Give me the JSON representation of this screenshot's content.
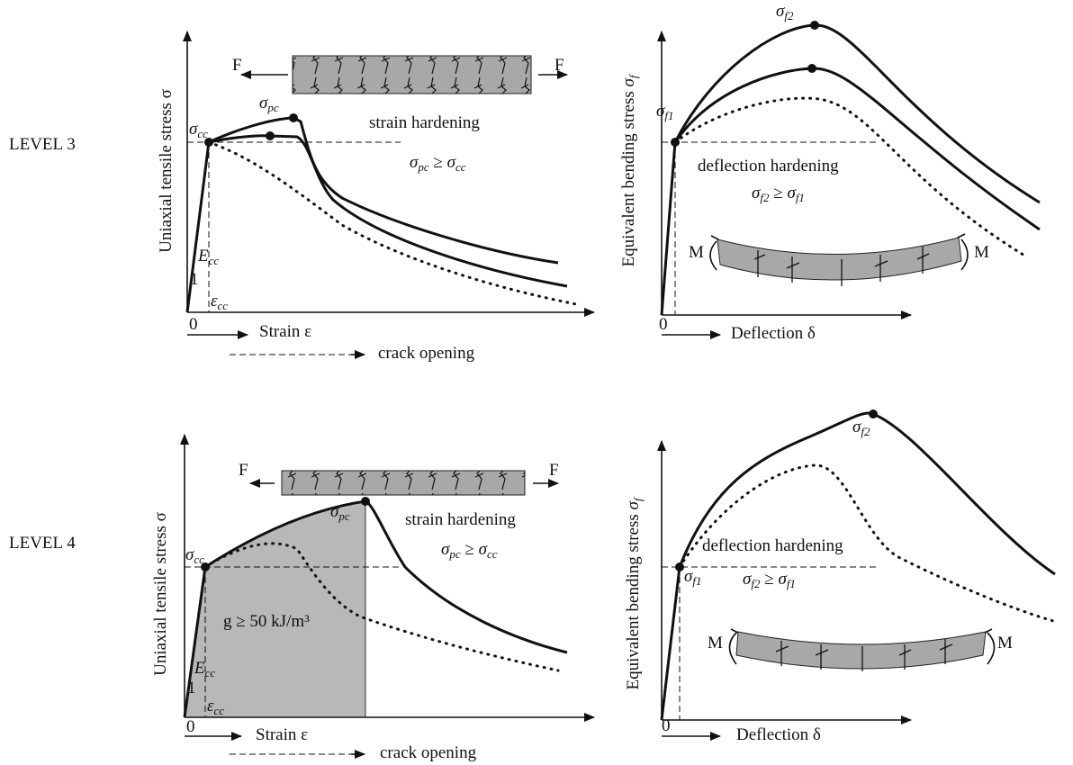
{
  "levels": [
    {
      "label": "LEVEL 3",
      "tensile": {
        "y_axis": "Uniaxial tensile stress σ",
        "x_axis": "Strain ε",
        "x_axis_2": "crack opening",
        "origin": "0",
        "force_left": "F",
        "force_right": "F",
        "first_crack": "σcc",
        "peak": "σpc",
        "modulus": "Ecc",
        "slope": "1",
        "strain_at_crack": "εcc",
        "behavior": "strain hardening",
        "condition": "σpc ≥ σcc"
      },
      "bending": {
        "y_axis": "Equivalent bending stress σf",
        "x_axis": "Deflection δ",
        "origin": "0",
        "moment_left": "M",
        "moment_right": "M",
        "first_crack": "σf1",
        "peak": "σf2",
        "behavior": "deflection hardening",
        "condition": "σf2 ≥ σf1"
      }
    },
    {
      "label": "LEVEL 4",
      "tensile": {
        "y_axis": "Uniaxial tensile stress σ",
        "x_axis": "Strain ε",
        "x_axis_2": "crack opening",
        "origin": "0",
        "force_left": "F",
        "force_right": "F",
        "first_crack": "σcc",
        "peak": "σpc",
        "modulus": "Ecc",
        "slope": "1",
        "strain_at_crack": "εcc",
        "behavior": "strain hardening",
        "condition": "σpc ≥ σcc",
        "energy": "g ≥ 50 kJ/m³"
      },
      "bending": {
        "y_axis": "Equivalent bending stress σf",
        "x_axis": "Deflection δ",
        "origin": "0",
        "moment_left": "M",
        "moment_right": "M",
        "first_crack": "σf1",
        "peak": "σf2",
        "behavior": "deflection hardening",
        "condition": "σf2 ≥ σf1"
      }
    }
  ]
}
